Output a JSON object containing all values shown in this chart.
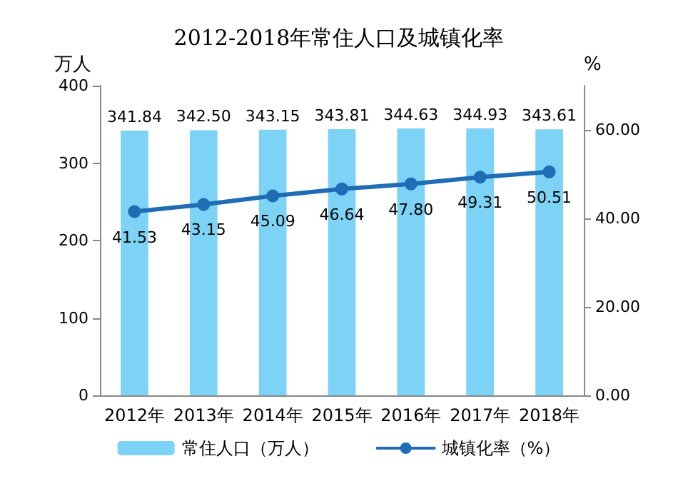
{
  "chart_data": {
    "type": "bar",
    "title": "2012-2018年常住人口及城镇化率",
    "categories": [
      "2012年",
      "2013年",
      "2014年",
      "2015年",
      "2016年",
      "2017年",
      "2018年"
    ],
    "series": [
      {
        "name": "常住人口（万人）",
        "color": "#7dd3f5",
        "values": [
          341.84,
          342.5,
          343.15,
          343.81,
          344.63,
          344.93,
          343.61
        ],
        "value_labels": [
          "341.84",
          "342.50",
          "343.15",
          "343.81",
          "344.63",
          "344.93",
          "343.61"
        ]
      },
      {
        "name": "城镇化率（%）",
        "type": "line",
        "axis": "y2",
        "color": "#1f6db5",
        "values": [
          41.53,
          43.15,
          45.09,
          46.64,
          47.8,
          49.31,
          50.51
        ],
        "value_labels": [
          "41.53",
          "43.15",
          "45.09",
          "46.64",
          "47.80",
          "49.31",
          "50.51"
        ]
      }
    ],
    "ylabel": "万人",
    "y2label": "%",
    "ylim": [
      0,
      400
    ],
    "yticks": [
      0,
      100,
      200,
      300,
      400
    ],
    "y2lim": [
      0,
      70
    ],
    "y2ticks": [
      {
        "value": 0,
        "label": "0.00"
      },
      {
        "value": 20,
        "label": "20.00"
      },
      {
        "value": 40,
        "label": "40.00"
      },
      {
        "value": 60,
        "label": "60.00"
      }
    ],
    "grid": false,
    "legend": "bottom",
    "marker": "circle",
    "line_style": "solid"
  }
}
